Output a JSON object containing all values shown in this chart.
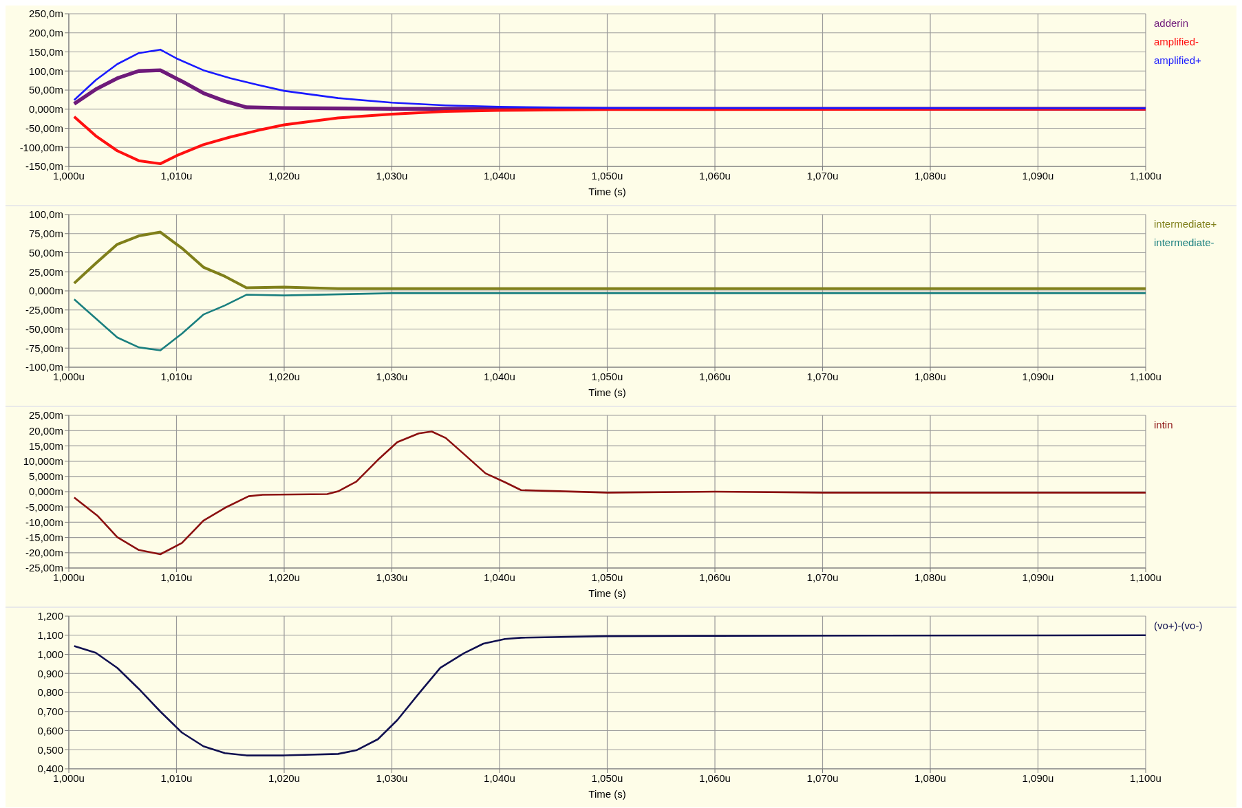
{
  "chart_data": [
    {
      "type": "line",
      "xlabel": "Time (s)",
      "xlim": [
        1.0,
        1.1
      ],
      "xticks": [
        {
          "value": 1.0,
          "label": "1,000u"
        },
        {
          "value": 1.01,
          "label": "1,010u"
        },
        {
          "value": 1.02,
          "label": "1,020u"
        },
        {
          "value": 1.03,
          "label": "1,030u"
        },
        {
          "value": 1.04,
          "label": "1,040u"
        },
        {
          "value": 1.05,
          "label": "1,050u"
        },
        {
          "value": 1.06,
          "label": "1,060u"
        },
        {
          "value": 1.07,
          "label": "1,070u"
        },
        {
          "value": 1.08,
          "label": "1,080u"
        },
        {
          "value": 1.09,
          "label": "1,090u"
        },
        {
          "value": 1.1,
          "label": "1,100u"
        }
      ],
      "ylim": [
        -150,
        250
      ],
      "yticks": [
        {
          "value": 250,
          "label": "250,0m"
        },
        {
          "value": 200,
          "label": "200,0m"
        },
        {
          "value": 150,
          "label": "150,0m"
        },
        {
          "value": 100,
          "label": "100,0m"
        },
        {
          "value": 50,
          "label": "50,00m"
        },
        {
          "value": 0,
          "label": "0,000m"
        },
        {
          "value": -50,
          "label": "-50,00m"
        },
        {
          "value": -100,
          "label": "-100,00m"
        },
        {
          "value": -150,
          "label": "-150,0m"
        }
      ],
      "grid": true,
      "legend": "top right",
      "series": [
        {
          "name": "adderin",
          "color": "#6e1a7a",
          "x": [
            1.0005,
            1.0025,
            1.0045,
            1.0065,
            1.0085,
            1.0105,
            1.0125,
            1.0145,
            1.0165,
            1.02,
            1.03,
            1.1
          ],
          "values": [
            14,
            52,
            81,
            100,
            102,
            73,
            42,
            21,
            5,
            3,
            1,
            1
          ]
        },
        {
          "name": "amplified-",
          "color": "#ff1010",
          "x": [
            1.0005,
            1.0025,
            1.0045,
            1.0065,
            1.0085,
            1.01,
            1.0125,
            1.015,
            1.0175,
            1.02,
            1.025,
            1.03,
            1.035,
            1.04,
            1.05,
            1.1
          ],
          "values": [
            -20,
            -70,
            -109,
            -135,
            -143,
            -122,
            -93,
            -73,
            -56,
            -41,
            -23,
            -13,
            -6,
            -3,
            -1,
            0
          ]
        },
        {
          "name": "amplified+",
          "color": "#1a1aff",
          "x": [
            1.0005,
            1.0025,
            1.0045,
            1.0065,
            1.0085,
            1.01,
            1.0125,
            1.015,
            1.0175,
            1.02,
            1.025,
            1.03,
            1.035,
            1.04,
            1.05,
            1.1
          ],
          "values": [
            24,
            76,
            118,
            147,
            156,
            133,
            102,
            81,
            64,
            48,
            29,
            17,
            10,
            6,
            3,
            2
          ]
        }
      ]
    },
    {
      "type": "line",
      "xlabel": "Time (s)",
      "xlim": [
        1.0,
        1.1
      ],
      "xticks": [
        {
          "value": 1.0,
          "label": "1,000u"
        },
        {
          "value": 1.01,
          "label": "1,010u"
        },
        {
          "value": 1.02,
          "label": "1,020u"
        },
        {
          "value": 1.03,
          "label": "1,030u"
        },
        {
          "value": 1.04,
          "label": "1,040u"
        },
        {
          "value": 1.05,
          "label": "1,050u"
        },
        {
          "value": 1.06,
          "label": "1,060u"
        },
        {
          "value": 1.07,
          "label": "1,070u"
        },
        {
          "value": 1.08,
          "label": "1,080u"
        },
        {
          "value": 1.09,
          "label": "1,090u"
        },
        {
          "value": 1.1,
          "label": "1,100u"
        }
      ],
      "ylim": [
        -100,
        100
      ],
      "yticks": [
        {
          "value": 100,
          "label": "100,0m"
        },
        {
          "value": 75,
          "label": "75,00m"
        },
        {
          "value": 50,
          "label": "50,00m"
        },
        {
          "value": 25,
          "label": "25,00m"
        },
        {
          "value": 0,
          "label": "0,000m"
        },
        {
          "value": -25,
          "label": "-25,00m"
        },
        {
          "value": -50,
          "label": "-50,00m"
        },
        {
          "value": -75,
          "label": "-75,00m"
        },
        {
          "value": -100,
          "label": "-100,0m"
        }
      ],
      "grid": true,
      "legend": "top right",
      "series": [
        {
          "name": "intermediate+",
          "color": "#7f7f1a",
          "x": [
            1.0005,
            1.0025,
            1.0045,
            1.0065,
            1.0085,
            1.0105,
            1.0125,
            1.0145,
            1.0165,
            1.02,
            1.025,
            1.1
          ],
          "values": [
            10,
            36,
            61,
            72,
            77,
            56,
            31,
            19,
            4,
            5,
            3,
            3
          ]
        },
        {
          "name": "intermediate-",
          "color": "#1a7f7f",
          "x": [
            1.0005,
            1.0025,
            1.0045,
            1.0065,
            1.0085,
            1.0105,
            1.0125,
            1.0145,
            1.0165,
            1.02,
            1.03,
            1.1
          ],
          "values": [
            -11,
            -36,
            -61,
            -74,
            -78,
            -56,
            -31,
            -19,
            -5,
            -6,
            -3,
            -3
          ]
        }
      ]
    },
    {
      "type": "line",
      "xlabel": "Time (s)",
      "xlim": [
        1.0,
        1.1
      ],
      "xticks": [
        {
          "value": 1.0,
          "label": "1,000u"
        },
        {
          "value": 1.01,
          "label": "1,010u"
        },
        {
          "value": 1.02,
          "label": "1,020u"
        },
        {
          "value": 1.03,
          "label": "1,030u"
        },
        {
          "value": 1.04,
          "label": "1,040u"
        },
        {
          "value": 1.05,
          "label": "1,050u"
        },
        {
          "value": 1.06,
          "label": "1,060u"
        },
        {
          "value": 1.07,
          "label": "1,070u"
        },
        {
          "value": 1.08,
          "label": "1,080u"
        },
        {
          "value": 1.09,
          "label": "1,090u"
        },
        {
          "value": 1.1,
          "label": "1,100u"
        }
      ],
      "ylim": [
        -25,
        25
      ],
      "yticks": [
        {
          "value": 25,
          "label": "25,00m"
        },
        {
          "value": 20,
          "label": "20,00m"
        },
        {
          "value": 15,
          "label": "15,00m"
        },
        {
          "value": 10,
          "label": "10,000m"
        },
        {
          "value": 5,
          "label": "5,000m"
        },
        {
          "value": 0,
          "label": "0,000m"
        },
        {
          "value": -5,
          "label": "-5,000m"
        },
        {
          "value": -10,
          "label": "-10,00m"
        },
        {
          "value": -15,
          "label": "-15,00m"
        },
        {
          "value": -20,
          "label": "-20,00m"
        },
        {
          "value": -25,
          "label": "-25,00m"
        }
      ],
      "grid": true,
      "legend": "top right",
      "series": [
        {
          "name": "intin",
          "color": "#8b1010",
          "x": [
            1.0005,
            1.0027,
            1.0045,
            1.0065,
            1.0085,
            1.0105,
            1.0125,
            1.0145,
            1.0167,
            1.018,
            1.024,
            1.025,
            1.0267,
            1.0287,
            1.0305,
            1.0325,
            1.0337,
            1.035,
            1.0367,
            1.0387,
            1.0405,
            1.042,
            1.05,
            1.06,
            1.07,
            1.1
          ],
          "values": [
            -1.9,
            -8,
            -14.9,
            -19.1,
            -20.5,
            -16.8,
            -9.5,
            -5.3,
            -1.5,
            -1,
            -0.8,
            0.1,
            3.3,
            10.4,
            16.2,
            19.1,
            19.7,
            17.6,
            12.3,
            6,
            3.1,
            0.5,
            -0.3,
            0,
            -0.3,
            -0.3
          ]
        }
      ]
    },
    {
      "type": "line",
      "xlabel": "Time (s)",
      "xlim": [
        1.0,
        1.1
      ],
      "xticks": [
        {
          "value": 1.0,
          "label": "1,000u"
        },
        {
          "value": 1.01,
          "label": "1,010u"
        },
        {
          "value": 1.02,
          "label": "1,020u"
        },
        {
          "value": 1.03,
          "label": "1,030u"
        },
        {
          "value": 1.04,
          "label": "1,040u"
        },
        {
          "value": 1.05,
          "label": "1,050u"
        },
        {
          "value": 1.06,
          "label": "1,060u"
        },
        {
          "value": 1.07,
          "label": "1,070u"
        },
        {
          "value": 1.08,
          "label": "1,080u"
        },
        {
          "value": 1.09,
          "label": "1,090u"
        },
        {
          "value": 1.1,
          "label": "1,100u"
        }
      ],
      "ylim": [
        0.4,
        1.2
      ],
      "yticks": [
        {
          "value": 1.2,
          "label": "1,200"
        },
        {
          "value": 1.1,
          "label": "1,100"
        },
        {
          "value": 1.0,
          "label": "1,000"
        },
        {
          "value": 0.9,
          "label": "0,900"
        },
        {
          "value": 0.8,
          "label": "0,800"
        },
        {
          "value": 0.7,
          "label": "0,700"
        },
        {
          "value": 0.6,
          "label": "0,600"
        },
        {
          "value": 0.5,
          "label": "0,500"
        },
        {
          "value": 0.4,
          "label": "0,400"
        }
      ],
      "grid": true,
      "legend": "top right",
      "series": [
        {
          "name": "(vo+)-(vo-)",
          "color": "#101050",
          "x": [
            1.0005,
            1.0025,
            1.0045,
            1.0065,
            1.0085,
            1.0105,
            1.0125,
            1.0145,
            1.0165,
            1.02,
            1.025,
            1.0267,
            1.0287,
            1.0305,
            1.0325,
            1.0345,
            1.0367,
            1.0385,
            1.0405,
            1.042,
            1.05,
            1.06,
            1.1
          ],
          "values": [
            1.043,
            1.008,
            0.929,
            0.819,
            0.7,
            0.59,
            0.518,
            0.482,
            0.47,
            0.47,
            0.478,
            0.497,
            0.555,
            0.655,
            0.794,
            0.929,
            1.006,
            1.056,
            1.08,
            1.087,
            1.095,
            1.097,
            1.1
          ]
        }
      ]
    }
  ]
}
